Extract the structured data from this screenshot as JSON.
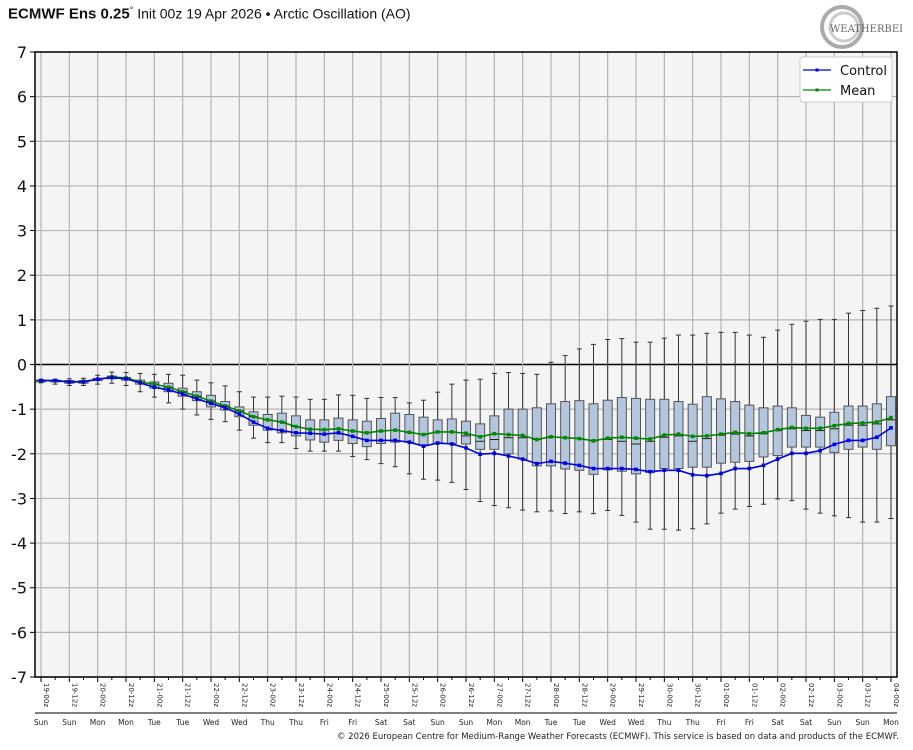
{
  "header": {
    "title_bold": "ECMWF Ens 0.25",
    "title_degree": "°",
    "title_rest": "Init 00z 19 Apr 2026 • Arctic Oscillation (AO)",
    "logo_text": "WeatherBELL"
  },
  "footer": "© 2026 European Centre for Medium-Range Weather Forecasts (ECMWF). This service is based on data and products of the ECMWF.",
  "colors": {
    "control": "#0000dd",
    "mean": "#008800",
    "box_fill": "#b4c6de",
    "plot_bg": "#f4f4f4",
    "grid": "#b4b4b4"
  },
  "chart_data": {
    "type": "box",
    "ylim": [
      -7,
      7
    ],
    "yticks": [
      7,
      6,
      5,
      4,
      3,
      2,
      1,
      0,
      -1,
      -2,
      -3,
      -4,
      -5,
      -6,
      -7
    ],
    "grid": true,
    "legend": {
      "placement": "top-right",
      "entries": [
        "Control",
        "Mean"
      ]
    },
    "x_tick_labels": [
      "19-00z",
      "19-12z",
      "20-00z",
      "20-12z",
      "21-00z",
      "21-12z",
      "22-00z",
      "22-12z",
      "23-00z",
      "23-12z",
      "24-00z",
      "24-12z",
      "25-00z",
      "25-12z",
      "26-00z",
      "26-12z",
      "27-00z",
      "27-12z",
      "28-00z",
      "28-12z",
      "29-00z",
      "29-12z",
      "30-00z",
      "30-12z",
      "01-00z",
      "01-12z",
      "02-00z",
      "02-12z",
      "03-00z",
      "03-12z",
      "04-00z"
    ],
    "x_day_labels": [
      "Sun",
      "Sun",
      "Mon",
      "Mon",
      "Tue",
      "Tue",
      "Wed",
      "Wed",
      "Thu",
      "Thu",
      "Fri",
      "Fri",
      "Sat",
      "Sat",
      "Sun",
      "Sun",
      "Mon",
      "Mon",
      "Tue",
      "Tue",
      "Wed",
      "Wed",
      "Thu",
      "Thu",
      "Fri",
      "Fri",
      "Sat",
      "Sat",
      "Sun",
      "Sun",
      "Mon"
    ],
    "step_hours": 6,
    "series": [
      {
        "name": "Control",
        "values": [
          -0.36,
          -0.36,
          -0.39,
          -0.39,
          -0.33,
          -0.29,
          -0.32,
          -0.41,
          -0.51,
          -0.57,
          -0.66,
          -0.77,
          -0.87,
          -0.97,
          -1.11,
          -1.29,
          -1.43,
          -1.48,
          -1.53,
          -1.54,
          -1.56,
          -1.53,
          -1.61,
          -1.7,
          -1.7,
          -1.7,
          -1.74,
          -1.83,
          -1.76,
          -1.78,
          -1.87,
          -2.01,
          -1.99,
          -2.05,
          -2.12,
          -2.22,
          -2.17,
          -2.21,
          -2.26,
          -2.33,
          -2.33,
          -2.33,
          -2.35,
          -2.4,
          -2.37,
          -2.37,
          -2.47,
          -2.49,
          -2.44,
          -2.33,
          -2.33,
          -2.26,
          -2.12,
          -1.99,
          -1.99,
          -1.93,
          -1.79,
          -1.7,
          -1.7,
          -1.63,
          -1.42
        ]
      },
      {
        "name": "Mean",
        "values": [
          -0.36,
          -0.36,
          -0.39,
          -0.38,
          -0.33,
          -0.28,
          -0.3,
          -0.39,
          -0.44,
          -0.51,
          -0.61,
          -0.71,
          -0.82,
          -0.93,
          -1.04,
          -1.17,
          -1.24,
          -1.29,
          -1.39,
          -1.45,
          -1.46,
          -1.44,
          -1.49,
          -1.53,
          -1.49,
          -1.47,
          -1.52,
          -1.57,
          -1.51,
          -1.51,
          -1.54,
          -1.62,
          -1.55,
          -1.57,
          -1.59,
          -1.68,
          -1.62,
          -1.64,
          -1.66,
          -1.71,
          -1.65,
          -1.63,
          -1.65,
          -1.67,
          -1.58,
          -1.56,
          -1.61,
          -1.6,
          -1.56,
          -1.52,
          -1.55,
          -1.53,
          -1.46,
          -1.41,
          -1.43,
          -1.43,
          -1.37,
          -1.32,
          -1.31,
          -1.29,
          -1.19
        ]
      }
    ],
    "boxes": {
      "max": [
        -0.33,
        -0.33,
        -0.32,
        -0.31,
        -0.24,
        -0.17,
        -0.18,
        -0.2,
        -0.22,
        -0.22,
        -0.24,
        -0.35,
        -0.41,
        -0.48,
        -0.61,
        -0.73,
        -0.73,
        -0.71,
        -0.73,
        -0.78,
        -0.78,
        -0.68,
        -0.69,
        -0.76,
        -0.74,
        -0.74,
        -0.86,
        -0.8,
        -0.62,
        -0.44,
        -0.35,
        -0.33,
        -0.2,
        -0.18,
        -0.2,
        -0.22,
        0.05,
        0.2,
        0.35,
        0.45,
        0.56,
        0.58,
        0.5,
        0.5,
        0.59,
        0.66,
        0.66,
        0.7,
        0.72,
        0.72,
        0.66,
        0.61,
        0.77,
        0.9,
        0.97,
        1.01,
        1.01,
        1.15,
        1.21,
        1.26,
        1.31
      ],
      "q3": [
        -0.35,
        -0.35,
        -0.36,
        -0.36,
        -0.31,
        -0.26,
        -0.29,
        -0.35,
        -0.39,
        -0.42,
        -0.53,
        -0.61,
        -0.69,
        -0.83,
        -0.95,
        -1.06,
        -1.12,
        -1.09,
        -1.15,
        -1.24,
        -1.24,
        -1.2,
        -1.24,
        -1.27,
        -1.21,
        -1.09,
        -1.12,
        -1.18,
        -1.24,
        -1.22,
        -1.27,
        -1.33,
        -1.15,
        -1.0,
        -1.0,
        -0.97,
        -0.88,
        -0.83,
        -0.81,
        -0.88,
        -0.8,
        -0.74,
        -0.76,
        -0.78,
        -0.78,
        -0.83,
        -0.89,
        -0.72,
        -0.77,
        -0.83,
        -0.91,
        -0.97,
        -0.93,
        -0.97,
        -1.14,
        -1.18,
        -1.07,
        -0.93,
        -0.93,
        -0.88,
        -0.72
      ],
      "median": [
        -0.36,
        -0.36,
        -0.39,
        -0.38,
        -0.33,
        -0.28,
        -0.3,
        -0.39,
        -0.44,
        -0.51,
        -0.61,
        -0.71,
        -0.82,
        -0.93,
        -1.04,
        -1.17,
        -1.24,
        -1.29,
        -1.39,
        -1.45,
        -1.46,
        -1.44,
        -1.49,
        -1.53,
        -1.49,
        -1.47,
        -1.52,
        -1.57,
        -1.51,
        -1.51,
        -1.6,
        -1.72,
        -1.68,
        -1.64,
        -1.64,
        -1.68,
        -1.62,
        -1.64,
        -1.66,
        -1.71,
        -1.68,
        -1.72,
        -1.78,
        -1.72,
        -1.63,
        -1.6,
        -1.72,
        -1.66,
        -1.58,
        -1.56,
        -1.6,
        -1.55,
        -1.48,
        -1.44,
        -1.48,
        -1.48,
        -1.44,
        -1.36,
        -1.36,
        -1.33,
        -1.24
      ],
      "q1": [
        -0.39,
        -0.39,
        -0.42,
        -0.42,
        -0.36,
        -0.32,
        -0.35,
        -0.44,
        -0.53,
        -0.61,
        -0.71,
        -0.81,
        -0.95,
        -1.02,
        -1.17,
        -1.36,
        -1.47,
        -1.53,
        -1.6,
        -1.69,
        -1.74,
        -1.7,
        -1.77,
        -1.84,
        -1.77,
        -1.74,
        -1.74,
        -1.8,
        -1.76,
        -1.77,
        -1.78,
        -1.9,
        -1.9,
        -2.0,
        -2.12,
        -2.27,
        -2.27,
        -2.34,
        -2.37,
        -2.46,
        -2.36,
        -2.39,
        -2.45,
        -2.42,
        -2.33,
        -2.33,
        -2.3,
        -2.3,
        -2.21,
        -2.19,
        -2.17,
        -2.07,
        -2.04,
        -1.85,
        -1.85,
        -1.85,
        -1.97,
        -1.9,
        -1.85,
        -1.9,
        -1.82
      ],
      "min": [
        -0.41,
        -0.44,
        -0.47,
        -0.47,
        -0.44,
        -0.42,
        -0.47,
        -0.61,
        -0.73,
        -0.86,
        -1.0,
        -1.13,
        -1.23,
        -1.28,
        -1.47,
        -1.65,
        -1.75,
        -1.75,
        -1.88,
        -1.94,
        -1.94,
        -1.94,
        -2.06,
        -2.13,
        -2.22,
        -2.29,
        -2.45,
        -2.57,
        -2.59,
        -2.64,
        -2.8,
        -3.07,
        -3.16,
        -3.21,
        -3.26,
        -3.3,
        -3.28,
        -3.34,
        -3.3,
        -3.34,
        -3.27,
        -3.38,
        -3.53,
        -3.69,
        -3.69,
        -3.71,
        -3.68,
        -3.57,
        -3.33,
        -3.24,
        -3.18,
        -3.13,
        -3.01,
        -3.05,
        -3.24,
        -3.33,
        -3.39,
        -3.43,
        -3.53,
        -3.53,
        -3.45
      ]
    }
  }
}
